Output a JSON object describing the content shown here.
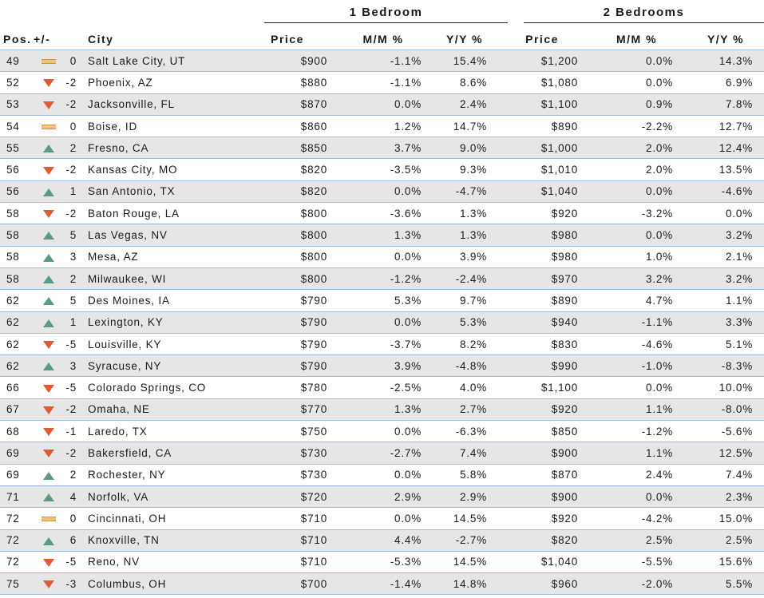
{
  "groups": {
    "one_bedroom": "1 Bedroom",
    "two_bedrooms": "2 Bedrooms"
  },
  "headers": {
    "pos": "Pos.",
    "change": "+/-",
    "city": "City",
    "price1": "Price",
    "mm1": "M/M %",
    "yy1": "Y/Y %",
    "price2": "Price",
    "mm2": "M/M %",
    "yy2": "Y/Y %"
  },
  "trend_icons": {
    "up": "triangle-up-icon",
    "down": "triangle-down-icon",
    "flat": "flat-bar-icon"
  },
  "colors": {
    "up": "#5b9a8b",
    "down": "#e05a33",
    "flat": "#f2c27a",
    "row_alt": "#e6e6e6",
    "row_line": "#9dbbe0"
  },
  "rows": [
    {
      "pos": "49",
      "trend": "flat",
      "change": "0",
      "city": "Salt Lake City, UT",
      "price1": "$900",
      "mm1": "-1.1%",
      "yy1": "15.4%",
      "price2": "$1,200",
      "mm2": "0.0%",
      "yy2": "14.3%"
    },
    {
      "pos": "52",
      "trend": "down",
      "change": "-2",
      "city": "Phoenix, AZ",
      "price1": "$880",
      "mm1": "-1.1%",
      "yy1": "8.6%",
      "price2": "$1,080",
      "mm2": "0.0%",
      "yy2": "6.9%"
    },
    {
      "pos": "53",
      "trend": "down",
      "change": "-2",
      "city": "Jacksonville, FL",
      "price1": "$870",
      "mm1": "0.0%",
      "yy1": "2.4%",
      "price2": "$1,100",
      "mm2": "0.9%",
      "yy2": "7.8%"
    },
    {
      "pos": "54",
      "trend": "flat",
      "change": "0",
      "city": "Boise, ID",
      "price1": "$860",
      "mm1": "1.2%",
      "yy1": "14.7%",
      "price2": "$890",
      "mm2": "-2.2%",
      "yy2": "12.7%"
    },
    {
      "pos": "55",
      "trend": "up",
      "change": "2",
      "city": "Fresno, CA",
      "price1": "$850",
      "mm1": "3.7%",
      "yy1": "9.0%",
      "price2": "$1,000",
      "mm2": "2.0%",
      "yy2": "12.4%"
    },
    {
      "pos": "56",
      "trend": "down",
      "change": "-2",
      "city": "Kansas City, MO",
      "price1": "$820",
      "mm1": "-3.5%",
      "yy1": "9.3%",
      "price2": "$1,010",
      "mm2": "2.0%",
      "yy2": "13.5%"
    },
    {
      "pos": "56",
      "trend": "up",
      "change": "1",
      "city": "San Antonio, TX",
      "price1": "$820",
      "mm1": "0.0%",
      "yy1": "-4.7%",
      "price2": "$1,040",
      "mm2": "0.0%",
      "yy2": "-4.6%"
    },
    {
      "pos": "58",
      "trend": "down",
      "change": "-2",
      "city": "Baton Rouge, LA",
      "price1": "$800",
      "mm1": "-3.6%",
      "yy1": "1.3%",
      "price2": "$920",
      "mm2": "-3.2%",
      "yy2": "0.0%"
    },
    {
      "pos": "58",
      "trend": "up",
      "change": "5",
      "city": "Las Vegas, NV",
      "price1": "$800",
      "mm1": "1.3%",
      "yy1": "1.3%",
      "price2": "$980",
      "mm2": "0.0%",
      "yy2": "3.2%"
    },
    {
      "pos": "58",
      "trend": "up",
      "change": "3",
      "city": "Mesa, AZ",
      "price1": "$800",
      "mm1": "0.0%",
      "yy1": "3.9%",
      "price2": "$980",
      "mm2": "1.0%",
      "yy2": "2.1%"
    },
    {
      "pos": "58",
      "trend": "up",
      "change": "2",
      "city": "Milwaukee, WI",
      "price1": "$800",
      "mm1": "-1.2%",
      "yy1": "-2.4%",
      "price2": "$970",
      "mm2": "3.2%",
      "yy2": "3.2%"
    },
    {
      "pos": "62",
      "trend": "up",
      "change": "5",
      "city": "Des Moines, IA",
      "price1": "$790",
      "mm1": "5.3%",
      "yy1": "9.7%",
      "price2": "$890",
      "mm2": "4.7%",
      "yy2": "1.1%"
    },
    {
      "pos": "62",
      "trend": "up",
      "change": "1",
      "city": "Lexington, KY",
      "price1": "$790",
      "mm1": "0.0%",
      "yy1": "5.3%",
      "price2": "$940",
      "mm2": "-1.1%",
      "yy2": "3.3%"
    },
    {
      "pos": "62",
      "trend": "down",
      "change": "-5",
      "city": "Louisville, KY",
      "price1": "$790",
      "mm1": "-3.7%",
      "yy1": "8.2%",
      "price2": "$830",
      "mm2": "-4.6%",
      "yy2": "5.1%"
    },
    {
      "pos": "62",
      "trend": "up",
      "change": "3",
      "city": "Syracuse, NY",
      "price1": "$790",
      "mm1": "3.9%",
      "yy1": "-4.8%",
      "price2": "$990",
      "mm2": "-1.0%",
      "yy2": "-8.3%"
    },
    {
      "pos": "66",
      "trend": "down",
      "change": "-5",
      "city": "Colorado Springs, CO",
      "price1": "$780",
      "mm1": "-2.5%",
      "yy1": "4.0%",
      "price2": "$1,100",
      "mm2": "0.0%",
      "yy2": "10.0%"
    },
    {
      "pos": "67",
      "trend": "down",
      "change": "-2",
      "city": "Omaha, NE",
      "price1": "$770",
      "mm1": "1.3%",
      "yy1": "2.7%",
      "price2": "$920",
      "mm2": "1.1%",
      "yy2": "-8.0%"
    },
    {
      "pos": "68",
      "trend": "down",
      "change": "-1",
      "city": "Laredo, TX",
      "price1": "$750",
      "mm1": "0.0%",
      "yy1": "-6.3%",
      "price2": "$850",
      "mm2": "-1.2%",
      "yy2": "-5.6%"
    },
    {
      "pos": "69",
      "trend": "down",
      "change": "-2",
      "city": "Bakersfield, CA",
      "price1": "$730",
      "mm1": "-2.7%",
      "yy1": "7.4%",
      "price2": "$900",
      "mm2": "1.1%",
      "yy2": "12.5%"
    },
    {
      "pos": "69",
      "trend": "up",
      "change": "2",
      "city": "Rochester, NY",
      "price1": "$730",
      "mm1": "0.0%",
      "yy1": "5.8%",
      "price2": "$870",
      "mm2": "2.4%",
      "yy2": "7.4%"
    },
    {
      "pos": "71",
      "trend": "up",
      "change": "4",
      "city": "Norfolk, VA",
      "price1": "$720",
      "mm1": "2.9%",
      "yy1": "2.9%",
      "price2": "$900",
      "mm2": "0.0%",
      "yy2": "2.3%"
    },
    {
      "pos": "72",
      "trend": "flat",
      "change": "0",
      "city": "Cincinnati, OH",
      "price1": "$710",
      "mm1": "0.0%",
      "yy1": "14.5%",
      "price2": "$920",
      "mm2": "-4.2%",
      "yy2": "15.0%"
    },
    {
      "pos": "72",
      "trend": "up",
      "change": "6",
      "city": "Knoxville, TN",
      "price1": "$710",
      "mm1": "4.4%",
      "yy1": "-2.7%",
      "price2": "$820",
      "mm2": "2.5%",
      "yy2": "2.5%"
    },
    {
      "pos": "72",
      "trend": "down",
      "change": "-5",
      "city": "Reno, NV",
      "price1": "$710",
      "mm1": "-5.3%",
      "yy1": "14.5%",
      "price2": "$1,040",
      "mm2": "-5.5%",
      "yy2": "15.6%"
    },
    {
      "pos": "75",
      "trend": "down",
      "change": "-3",
      "city": "Columbus, OH",
      "price1": "$700",
      "mm1": "-1.4%",
      "yy1": "14.8%",
      "price2": "$960",
      "mm2": "-2.0%",
      "yy2": "5.5%"
    }
  ]
}
